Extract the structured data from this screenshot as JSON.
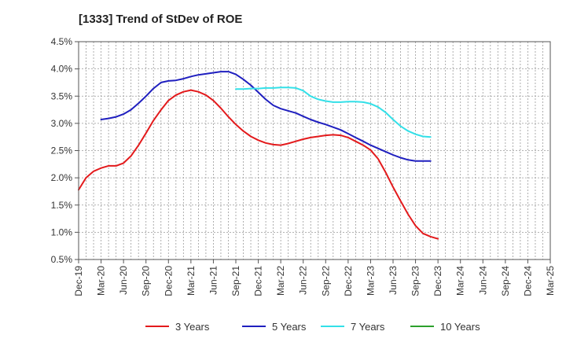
{
  "chart_data": {
    "type": "line",
    "title": "[1333]  Trend of StDev of ROE",
    "xlabel": "",
    "ylabel": "",
    "x_ticks": [
      "Dec-19",
      "Mar-20",
      "Jun-20",
      "Sep-20",
      "Dec-20",
      "Mar-21",
      "Jun-21",
      "Sep-21",
      "Dec-21",
      "Mar-22",
      "Jun-22",
      "Sep-22",
      "Dec-22",
      "Mar-23",
      "Jun-23",
      "Sep-23",
      "Dec-23",
      "Mar-24",
      "Jun-24",
      "Sep-24",
      "Dec-24",
      "Mar-25"
    ],
    "y_ticks": [
      "0.5%",
      "1.0%",
      "1.5%",
      "2.0%",
      "2.5%",
      "3.0%",
      "3.5%",
      "4.0%",
      "4.5%"
    ],
    "ylim": [
      0.5,
      4.5
    ],
    "grid": true,
    "legend_position": "bottom",
    "series": [
      {
        "name": "3 Years",
        "color": "#e31a1c",
        "points": [
          [
            0,
            1.78
          ],
          [
            0.33,
            2.0
          ],
          [
            0.67,
            2.12
          ],
          [
            1,
            2.18
          ],
          [
            1.33,
            2.22
          ],
          [
            1.67,
            2.22
          ],
          [
            2,
            2.27
          ],
          [
            2.33,
            2.4
          ],
          [
            2.67,
            2.6
          ],
          [
            3,
            2.82
          ],
          [
            3.33,
            3.05
          ],
          [
            3.67,
            3.25
          ],
          [
            4,
            3.42
          ],
          [
            4.33,
            3.52
          ],
          [
            4.67,
            3.58
          ],
          [
            5,
            3.61
          ],
          [
            5.33,
            3.58
          ],
          [
            5.67,
            3.52
          ],
          [
            6,
            3.42
          ],
          [
            6.33,
            3.28
          ],
          [
            6.67,
            3.12
          ],
          [
            7,
            2.98
          ],
          [
            7.33,
            2.86
          ],
          [
            7.67,
            2.76
          ],
          [
            8,
            2.69
          ],
          [
            8.33,
            2.64
          ],
          [
            8.67,
            2.61
          ],
          [
            9,
            2.6
          ],
          [
            9.33,
            2.63
          ],
          [
            9.67,
            2.67
          ],
          [
            10,
            2.71
          ],
          [
            10.33,
            2.74
          ],
          [
            10.67,
            2.76
          ],
          [
            11,
            2.78
          ],
          [
            11.33,
            2.79
          ],
          [
            11.67,
            2.78
          ],
          [
            12,
            2.74
          ],
          [
            12.33,
            2.67
          ],
          [
            12.67,
            2.6
          ],
          [
            13,
            2.51
          ],
          [
            13.33,
            2.35
          ],
          [
            13.67,
            2.1
          ],
          [
            14,
            1.83
          ],
          [
            14.33,
            1.58
          ],
          [
            14.67,
            1.33
          ],
          [
            15,
            1.12
          ],
          [
            15.33,
            0.98
          ],
          [
            15.67,
            0.92
          ],
          [
            16,
            0.88
          ]
        ]
      },
      {
        "name": "5 Years",
        "color": "#1f1fbf",
        "points": [
          [
            1,
            3.07
          ],
          [
            1.33,
            3.09
          ],
          [
            1.67,
            3.12
          ],
          [
            2,
            3.17
          ],
          [
            2.33,
            3.25
          ],
          [
            2.67,
            3.37
          ],
          [
            3,
            3.5
          ],
          [
            3.33,
            3.64
          ],
          [
            3.67,
            3.75
          ],
          [
            4,
            3.78
          ],
          [
            4.33,
            3.79
          ],
          [
            4.67,
            3.82
          ],
          [
            5,
            3.86
          ],
          [
            5.33,
            3.89
          ],
          [
            5.67,
            3.91
          ],
          [
            6,
            3.93
          ],
          [
            6.33,
            3.95
          ],
          [
            6.67,
            3.95
          ],
          [
            7,
            3.9
          ],
          [
            7.33,
            3.81
          ],
          [
            7.67,
            3.7
          ],
          [
            8,
            3.57
          ],
          [
            8.33,
            3.44
          ],
          [
            8.67,
            3.33
          ],
          [
            9,
            3.27
          ],
          [
            9.33,
            3.23
          ],
          [
            9.67,
            3.19
          ],
          [
            10,
            3.13
          ],
          [
            10.33,
            3.07
          ],
          [
            10.67,
            3.02
          ],
          [
            11,
            2.98
          ],
          [
            11.33,
            2.93
          ],
          [
            11.67,
            2.88
          ],
          [
            12,
            2.81
          ],
          [
            12.33,
            2.74
          ],
          [
            12.67,
            2.67
          ],
          [
            13,
            2.6
          ],
          [
            13.33,
            2.54
          ],
          [
            13.67,
            2.48
          ],
          [
            14,
            2.42
          ],
          [
            14.33,
            2.37
          ],
          [
            14.67,
            2.33
          ],
          [
            15,
            2.31
          ],
          [
            15.33,
            2.31
          ],
          [
            15.67,
            2.31
          ]
        ]
      },
      {
        "name": "7 Years",
        "color": "#33e0e8",
        "points": [
          [
            7,
            3.63
          ],
          [
            7.33,
            3.63
          ],
          [
            7.67,
            3.64
          ],
          [
            8,
            3.64
          ],
          [
            8.33,
            3.65
          ],
          [
            8.67,
            3.65
          ],
          [
            9,
            3.66
          ],
          [
            9.33,
            3.66
          ],
          [
            9.67,
            3.65
          ],
          [
            10,
            3.6
          ],
          [
            10.33,
            3.5
          ],
          [
            10.67,
            3.44
          ],
          [
            11,
            3.41
          ],
          [
            11.33,
            3.39
          ],
          [
            11.67,
            3.39
          ],
          [
            12,
            3.4
          ],
          [
            12.33,
            3.4
          ],
          [
            12.67,
            3.39
          ],
          [
            13,
            3.36
          ],
          [
            13.33,
            3.3
          ],
          [
            13.67,
            3.2
          ],
          [
            14,
            3.07
          ],
          [
            14.33,
            2.95
          ],
          [
            14.67,
            2.86
          ],
          [
            15,
            2.8
          ],
          [
            15.33,
            2.76
          ],
          [
            15.67,
            2.75
          ]
        ]
      },
      {
        "name": "10 Years",
        "color": "#2ca02c",
        "points": []
      }
    ]
  }
}
